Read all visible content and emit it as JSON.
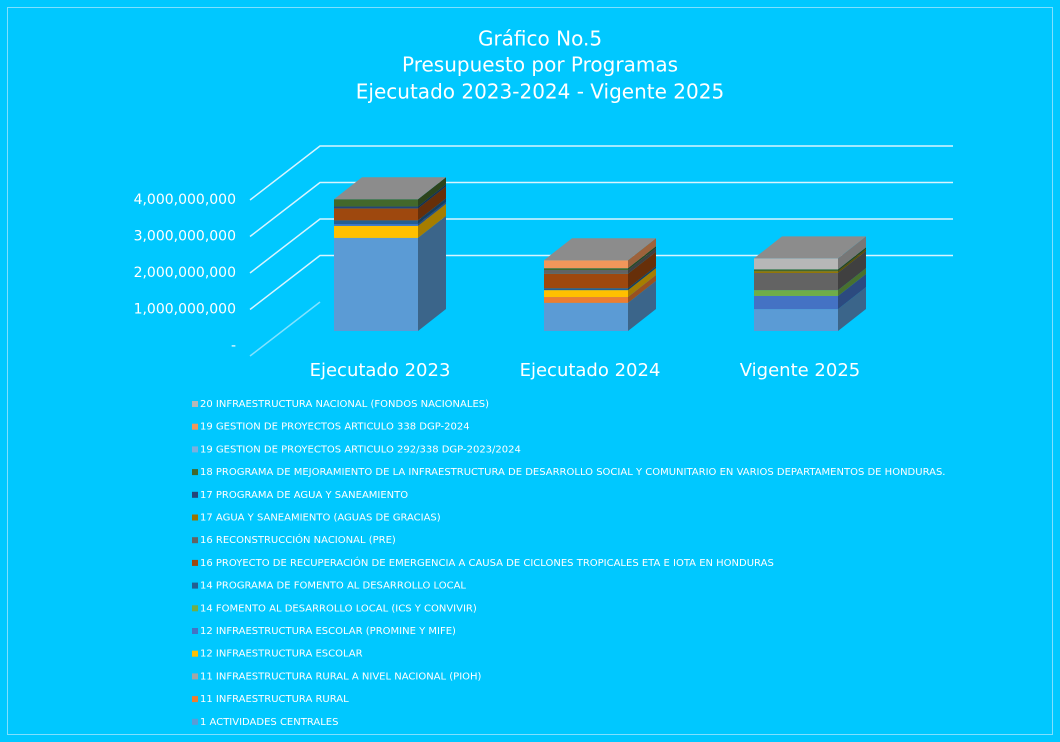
{
  "chart_data": {
    "type": "bar3d_stacked",
    "title": [
      "Gráfico No.5",
      "Presupuesto por Programas",
      "Ejecutado 2023-2024 - Vigente 2025"
    ],
    "categories": [
      "Ejecutado 2023",
      "Ejecutado 2024",
      "Vigente 2025"
    ],
    "ylim": [
      0,
      4000000000
    ],
    "yticks": [
      {
        "value": 0,
        "label": "-"
      },
      {
        "value": 1000000000,
        "label": "1,000,000,000"
      },
      {
        "value": 2000000000,
        "label": "2,000,000,000"
      },
      {
        "value": 3000000000,
        "label": "3,000,000,000"
      },
      {
        "value": 4000000000,
        "label": "4,000,000,000"
      }
    ],
    "grid": true,
    "legend": "bottom",
    "series": [
      {
        "name": "1 ACTIVIDADES CENTRALES",
        "color": "#5b9bd5",
        "values": [
          2550000000,
          770000000,
          600000000
        ]
      },
      {
        "name": "11 INFRAESTRUCTURA RURAL",
        "color": "#ed7d31",
        "values": [
          0,
          160000000,
          0
        ]
      },
      {
        "name": "11 INFRAESTRUCTURA RURAL A NIVEL NACIONAL (PIOH)",
        "color": "#a5a5a5",
        "values": [
          0,
          0,
          0
        ]
      },
      {
        "name": "12 INFRAESTRUCTURA ESCOLAR",
        "color": "#ffc000",
        "values": [
          330000000,
          190000000,
          0
        ]
      },
      {
        "name": "12 INFRAESTRUCTURA ESCOLAR (PROMINE Y MIFE)",
        "color": "#4472c4",
        "values": [
          50000000,
          0,
          360000000
        ]
      },
      {
        "name": "14 FOMENTO AL DESARROLLO LOCAL (ICS Y CONVIVIR)",
        "color": "#70ad47",
        "values": [
          0,
          0,
          160000000
        ]
      },
      {
        "name": "14 PROGRAMA DE FOMENTO AL DESARROLLO LOCAL",
        "color": "#255e91",
        "values": [
          100000000,
          50000000,
          0
        ]
      },
      {
        "name": "16 PROYECTO DE RECUPERACIÓN DE EMERGENCIA A CAUSA DE CICLONES TROPICALES ETA E IOTA EN HONDURAS",
        "color": "#9e480e",
        "values": [
          330000000,
          400000000,
          0
        ]
      },
      {
        "name": "16 RECONSTRUCCIÓN NACIONAL (PRE)",
        "color": "#636363",
        "values": [
          0,
          100000000,
          470000000
        ]
      },
      {
        "name": "17 AGUA Y SANEAMIENTO (AGUAS DE GRACIAS)",
        "color": "#997300",
        "values": [
          0,
          0,
          50000000
        ]
      },
      {
        "name": "17 PROGRAMA DE AGUA Y SANEAMIENTO",
        "color": "#264478",
        "values": [
          50000000,
          0,
          0
        ]
      },
      {
        "name": "18 PROGRAMA DE MEJORAMIENTO DE LA INFRAESTRUCTURA DE DESARROLLO SOCIAL Y COMUNITARIO EN VARIOS DEPARTAMENTOS DE HONDURAS.",
        "color": "#43682b",
        "values": [
          200000000,
          50000000,
          50000000
        ]
      },
      {
        "name": "19 GESTION DE PROYECTOS ARTICULO 292/338 DGP-2023/2024",
        "color": "#7cafdd",
        "values": [
          0,
          0,
          0
        ]
      },
      {
        "name": "19 GESTION DE PROYECTOS ARTICULO 338 DGP-2024",
        "color": "#f1975a",
        "values": [
          0,
          220000000,
          0
        ]
      },
      {
        "name": "20 INFRAESTRUCTURA NACIONAL (FONDOS NACIONALES)",
        "color": "#b7b7b7",
        "values": [
          0,
          0,
          300000000
        ]
      }
    ]
  }
}
